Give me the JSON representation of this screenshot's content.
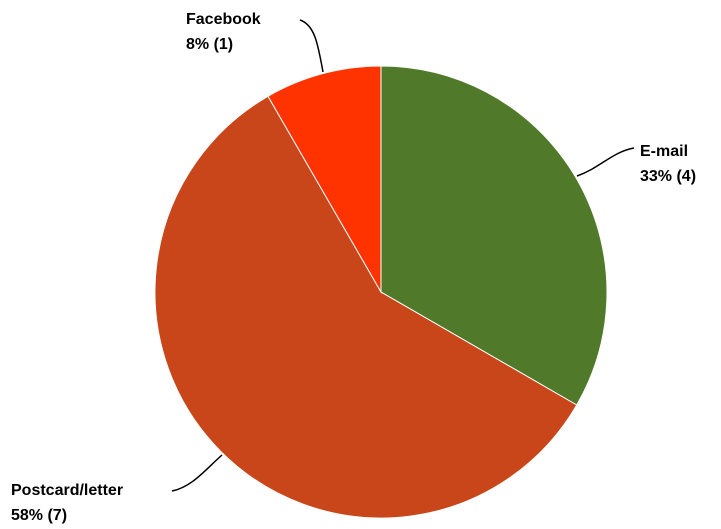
{
  "chart_data": {
    "type": "pie",
    "slices": [
      {
        "name": "E-mail",
        "value": 4,
        "percent_label": "33% (4)",
        "color": "#507A2A"
      },
      {
        "name": "Postcard/letter",
        "value": 7,
        "percent_label": "58% (7)",
        "color": "#C9451A"
      },
      {
        "name": "Facebook",
        "value": 1,
        "percent_label": "8% (1)",
        "color": "#FF3300"
      }
    ],
    "start_angle": "12 o'clock",
    "direction": "clockwise",
    "slice_border_color": "#ffffff"
  }
}
